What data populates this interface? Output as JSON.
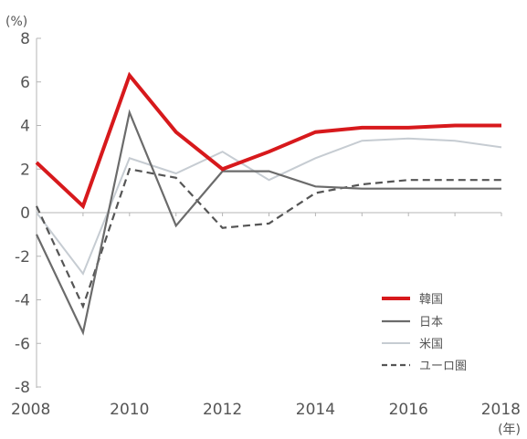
{
  "chart_data": {
    "type": "line",
    "title": "",
    "xlabel": "",
    "ylabel": "",
    "y_unit": "(%)",
    "x_unit": "(年)",
    "x": [
      2008,
      2009,
      2010,
      2011,
      2012,
      2013,
      2014,
      2015,
      2016,
      2017,
      2018
    ],
    "x_ticks": [
      "2008",
      "2010",
      "2012",
      "2014",
      "2016",
      "2018"
    ],
    "y_ticks": [
      "8",
      "6",
      "4",
      "2",
      "0",
      "-2",
      "-4",
      "-6",
      "-8"
    ],
    "xlim": [
      2008,
      2018
    ],
    "ylim": [
      -8,
      8
    ],
    "grid": false,
    "legend_position": "bottom-right",
    "series": [
      {
        "name": "韓国",
        "color": "#d7191c",
        "style": "solid-thick",
        "values": [
          2.3,
          0.3,
          6.3,
          3.7,
          2.0,
          2.8,
          3.7,
          3.9,
          3.9,
          4.0,
          4.0
        ]
      },
      {
        "name": "日本",
        "color": "#6b6b6b",
        "style": "solid",
        "values": [
          -1.0,
          -5.5,
          4.6,
          -0.6,
          1.9,
          1.9,
          1.2,
          1.1,
          1.1,
          1.1,
          1.1
        ]
      },
      {
        "name": "米国",
        "color": "#c6ccd2",
        "style": "solid-light",
        "values": [
          0.0,
          -2.8,
          2.5,
          1.8,
          2.8,
          1.5,
          2.5,
          3.3,
          3.4,
          3.3,
          3.0
        ]
      },
      {
        "name": "ユーロ圏",
        "color": "#555555",
        "style": "dashed",
        "values": [
          0.3,
          -4.3,
          2.0,
          1.6,
          -0.7,
          -0.5,
          0.9,
          1.3,
          1.5,
          1.5,
          1.5
        ]
      }
    ]
  }
}
